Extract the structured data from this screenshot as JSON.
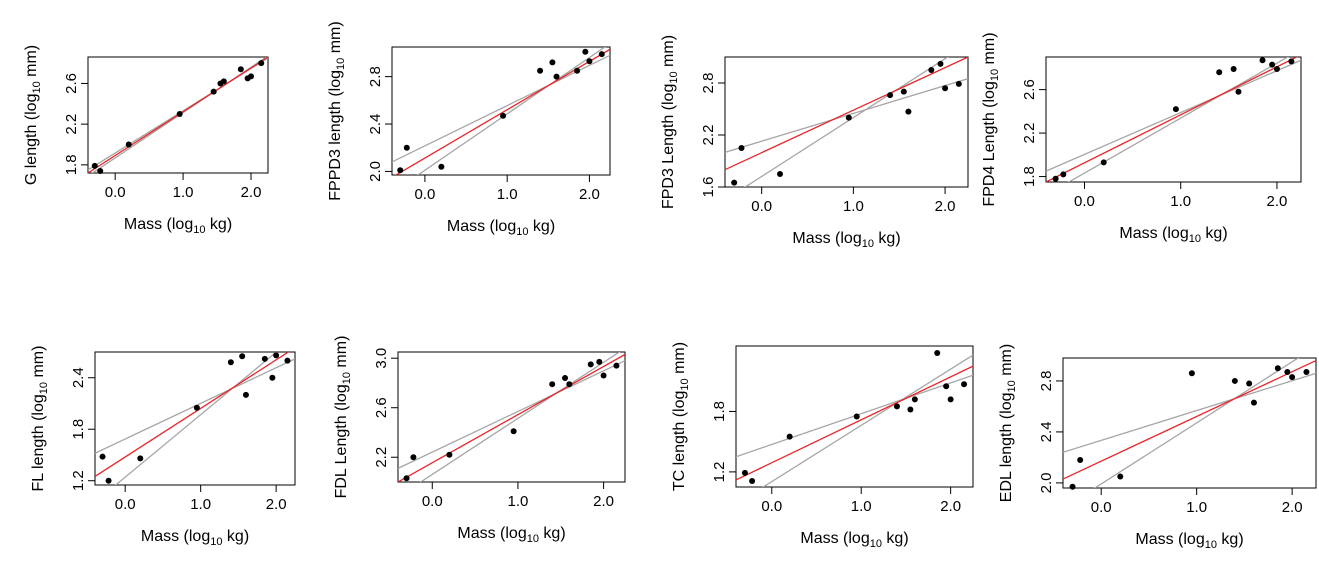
{
  "line_colors": {
    "fit": "#e8262b",
    "ci": "#a6a6a6",
    "points": "#000000",
    "frame": "#000000"
  },
  "chart_data": [
    {
      "type": "scatter",
      "ylabel": "G length (log10 mm)",
      "xlabel": "Mass (log10 kg)",
      "xticks": [
        "0.0",
        "1.0",
        "2.0"
      ],
      "yticks": [
        "1.8",
        "2.2",
        "2.6"
      ],
      "xlim": [
        -0.4,
        2.25
      ],
      "ylim": [
        1.72,
        2.86
      ],
      "points": [
        [
          -0.3,
          1.79
        ],
        [
          -0.22,
          1.74
        ],
        [
          0.2,
          2.0
        ],
        [
          0.95,
          2.3
        ],
        [
          1.45,
          2.52
        ],
        [
          1.55,
          2.6
        ],
        [
          1.6,
          2.62
        ],
        [
          1.85,
          2.74
        ],
        [
          1.95,
          2.65
        ],
        [
          2.0,
          2.67
        ],
        [
          2.15,
          2.8
        ]
      ],
      "fit": [
        [
          -0.4,
          1.72
        ],
        [
          2.25,
          2.86
        ]
      ],
      "ci_upper": [
        [
          -0.4,
          1.75
        ],
        [
          2.25,
          2.85
        ]
      ],
      "ci_lower": [
        [
          -0.4,
          1.69
        ],
        [
          2.25,
          2.87
        ]
      ]
    },
    {
      "type": "scatter",
      "ylabel": "FPPD3 length (log10 mm)",
      "xlabel": "Mass (log10 kg)",
      "xticks": [
        "0.0",
        "1.0",
        "2.0"
      ],
      "yticks": [
        "2.0",
        "2.4",
        "2.8"
      ],
      "xlim": [
        -0.4,
        2.25
      ],
      "ylim": [
        1.97,
        3.05
      ],
      "points": [
        [
          -0.3,
          2.01
        ],
        [
          -0.22,
          2.2
        ],
        [
          0.2,
          2.04
        ],
        [
          0.95,
          2.47
        ],
        [
          1.4,
          2.85
        ],
        [
          1.55,
          2.92
        ],
        [
          1.6,
          2.8
        ],
        [
          1.85,
          2.85
        ],
        [
          1.95,
          3.01
        ],
        [
          2.0,
          2.93
        ],
        [
          2.15,
          2.99
        ]
      ],
      "fit": [
        [
          -0.4,
          1.95
        ],
        [
          2.25,
          3.03
        ]
      ],
      "ci_upper": [
        [
          -0.4,
          2.08
        ],
        [
          2.25,
          2.98
        ]
      ],
      "ci_lower": [
        [
          -0.4,
          1.82
        ],
        [
          2.25,
          3.08
        ]
      ]
    },
    {
      "type": "scatter",
      "ylabel": "FPD3 Length (log10 mm)",
      "xlabel": "Mass (log10 kg)",
      "xticks": [
        "0.0",
        "1.0",
        "2.0"
      ],
      "yticks": [
        "1.6",
        "2.2",
        "2.8"
      ],
      "xlim": [
        -0.4,
        2.25
      ],
      "ylim": [
        1.6,
        3.1
      ],
      "points": [
        [
          -0.3,
          1.65
        ],
        [
          -0.22,
          2.05
        ],
        [
          0.2,
          1.75
        ],
        [
          0.95,
          2.4
        ],
        [
          1.4,
          2.66
        ],
        [
          1.55,
          2.7
        ],
        [
          1.6,
          2.47
        ],
        [
          1.85,
          2.95
        ],
        [
          1.95,
          3.02
        ],
        [
          2.0,
          2.74
        ],
        [
          2.15,
          2.79
        ]
      ],
      "fit": [
        [
          -0.4,
          1.8
        ],
        [
          2.25,
          3.1
        ]
      ],
      "ci_upper": [
        [
          -0.4,
          2.0
        ],
        [
          2.25,
          2.85
        ]
      ],
      "ci_lower": [
        [
          -0.4,
          1.45
        ],
        [
          2.25,
          3.25
        ]
      ]
    },
    {
      "type": "scatter",
      "ylabel": "FPD4 Length (log10 mm)",
      "xlabel": "Mass (log10 kg)",
      "xticks": [
        "0.0",
        "1.0",
        "2.0"
      ],
      "yticks": [
        "1.8",
        "2.2",
        "2.6"
      ],
      "xlim": [
        -0.4,
        2.25
      ],
      "ylim": [
        1.75,
        2.9
      ],
      "points": [
        [
          -0.3,
          1.78
        ],
        [
          -0.22,
          1.82
        ],
        [
          0.2,
          1.93
        ],
        [
          0.95,
          2.42
        ],
        [
          1.4,
          2.76
        ],
        [
          1.55,
          2.79
        ],
        [
          1.6,
          2.58
        ],
        [
          1.85,
          2.87
        ],
        [
          1.95,
          2.83
        ],
        [
          2.0,
          2.79
        ],
        [
          2.15,
          2.86
        ]
      ],
      "fit": [
        [
          -0.4,
          1.75
        ],
        [
          2.25,
          2.92
        ]
      ],
      "ci_upper": [
        [
          -0.4,
          1.85
        ],
        [
          2.25,
          2.87
        ]
      ],
      "ci_lower": [
        [
          -0.4,
          1.63
        ],
        [
          2.25,
          2.97
        ]
      ]
    },
    {
      "type": "scatter",
      "ylabel": "FL length (log10 mm)",
      "xlabel": "Mass (log10 kg)",
      "xticks": [
        "0.0",
        "1.0",
        "2.0"
      ],
      "yticks": [
        "1.2",
        "1.8",
        "2.4"
      ],
      "xlim": [
        -0.4,
        2.25
      ],
      "ylim": [
        1.15,
        2.7
      ],
      "points": [
        [
          -0.3,
          1.48
        ],
        [
          -0.22,
          1.2
        ],
        [
          0.2,
          1.46
        ],
        [
          0.95,
          2.05
        ],
        [
          1.4,
          2.58
        ],
        [
          1.55,
          2.65
        ],
        [
          1.6,
          2.2
        ],
        [
          1.85,
          2.62
        ],
        [
          1.95,
          2.4
        ],
        [
          2.0,
          2.66
        ],
        [
          2.15,
          2.6
        ]
      ],
      "fit": [
        [
          -0.4,
          1.25
        ],
        [
          2.25,
          2.75
        ]
      ],
      "ci_upper": [
        [
          -0.4,
          1.52
        ],
        [
          2.25,
          2.62
        ]
      ],
      "ci_lower": [
        [
          -0.4,
          0.95
        ],
        [
          2.25,
          2.88
        ]
      ]
    },
    {
      "type": "scatter",
      "ylabel": "FDL Length (log10 mm)",
      "xlabel": "Mass (log10 kg)",
      "xticks": [
        "0.0",
        "1.0",
        "2.0"
      ],
      "yticks": [
        "2.2",
        "2.6",
        "3.0"
      ],
      "xlim": [
        -0.4,
        2.25
      ],
      "ylim": [
        2.0,
        3.05
      ],
      "points": [
        [
          -0.3,
          2.03
        ],
        [
          -0.22,
          2.2
        ],
        [
          0.2,
          2.22
        ],
        [
          0.95,
          2.41
        ],
        [
          1.4,
          2.79
        ],
        [
          1.55,
          2.84
        ],
        [
          1.6,
          2.79
        ],
        [
          1.85,
          2.95
        ],
        [
          1.95,
          2.97
        ],
        [
          2.0,
          2.86
        ],
        [
          2.15,
          2.94
        ]
      ],
      "fit": [
        [
          -0.4,
          2.0
        ],
        [
          2.25,
          3.03
        ]
      ],
      "ci_upper": [
        [
          -0.4,
          2.11
        ],
        [
          2.25,
          2.98
        ]
      ],
      "ci_lower": [
        [
          -0.4,
          1.88
        ],
        [
          2.25,
          3.08
        ]
      ]
    },
    {
      "type": "scatter",
      "ylabel": "TC length (log10 mm)",
      "xlabel": "Mass (log10 kg)",
      "xticks": [
        "0.0",
        "1.0",
        "2.0"
      ],
      "yticks": [
        "1.2",
        "1.8"
      ],
      "xlim": [
        -0.4,
        2.25
      ],
      "ylim": [
        1.05,
        2.45
      ],
      "points": [
        [
          -0.3,
          1.19
        ],
        [
          -0.22,
          1.11
        ],
        [
          0.2,
          1.55
        ],
        [
          0.95,
          1.75
        ],
        [
          1.4,
          1.85
        ],
        [
          1.55,
          1.82
        ],
        [
          1.6,
          1.92
        ],
        [
          1.85,
          2.38
        ],
        [
          1.95,
          2.05
        ],
        [
          2.0,
          1.92
        ],
        [
          2.15,
          2.07
        ]
      ],
      "fit": [
        [
          -0.4,
          1.12
        ],
        [
          2.25,
          2.25
        ]
      ],
      "ci_upper": [
        [
          -0.4,
          1.35
        ],
        [
          2.25,
          2.16
        ]
      ],
      "ci_lower": [
        [
          -0.4,
          0.88
        ],
        [
          2.25,
          2.36
        ]
      ]
    },
    {
      "type": "scatter",
      "ylabel": "EDL length (log10 mm)",
      "xlabel": "Mass (log10 kg)",
      "xticks": [
        "0.0",
        "1.0",
        "2.0"
      ],
      "yticks": [
        "2.0",
        "2.4",
        "2.8"
      ],
      "xlim": [
        -0.4,
        2.25
      ],
      "ylim": [
        1.96,
        2.98
      ],
      "points": [
        [
          -0.3,
          1.97
        ],
        [
          -0.22,
          2.18
        ],
        [
          0.2,
          2.05
        ],
        [
          0.95,
          2.86
        ],
        [
          1.4,
          2.8
        ],
        [
          1.55,
          2.78
        ],
        [
          1.6,
          2.63
        ],
        [
          1.85,
          2.9
        ],
        [
          1.95,
          2.87
        ],
        [
          2.0,
          2.83
        ],
        [
          2.15,
          2.87
        ]
      ],
      "fit": [
        [
          -0.4,
          2.03
        ],
        [
          2.25,
          2.96
        ]
      ],
      "ci_upper": [
        [
          -0.4,
          2.24
        ],
        [
          2.25,
          2.86
        ]
      ],
      "ci_lower": [
        [
          -0.4,
          1.8
        ],
        [
          2.25,
          3.07
        ]
      ]
    }
  ]
}
